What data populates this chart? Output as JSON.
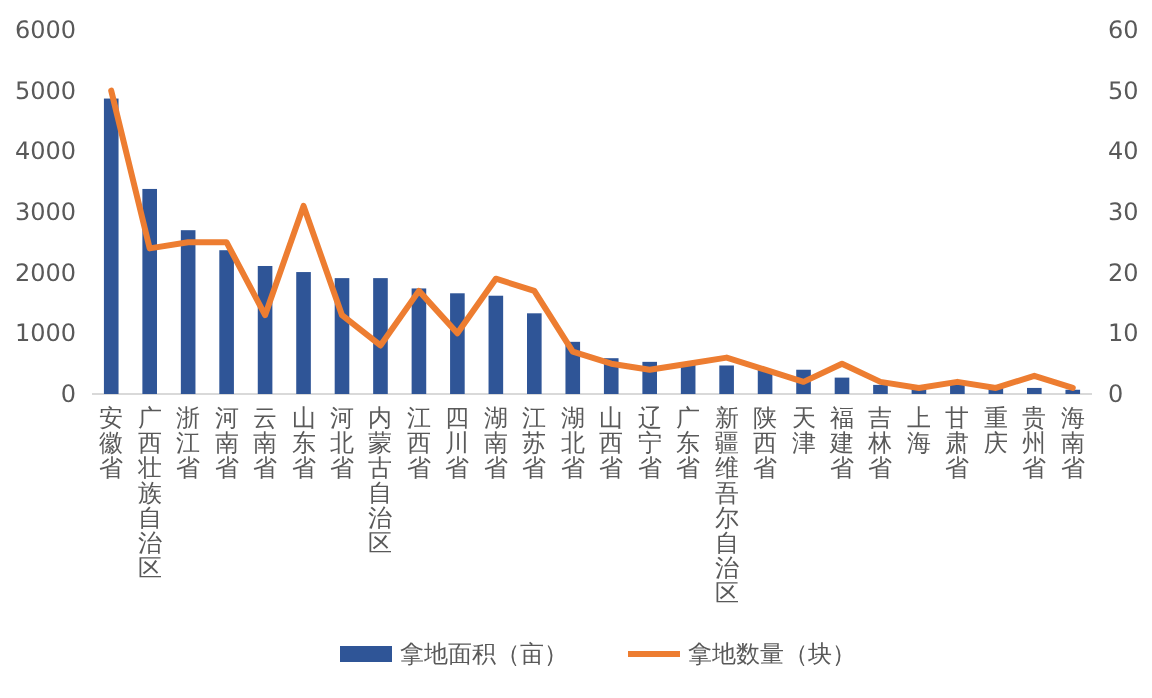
{
  "chart_data": {
    "type": "bar",
    "categories": [
      "安徽省",
      "广西壮族自治区",
      "浙江省",
      "河南省",
      "云南省",
      "山东省",
      "河北省",
      "内蒙古自治区",
      "江西省",
      "四川省",
      "湖南省",
      "江苏省",
      "湖北省",
      "山西省",
      "辽宁省",
      "广东省",
      "新疆维吾尔自治区",
      "陕西省",
      "天津",
      "福建省",
      "吉林省",
      "上海",
      "甘肃省",
      "重庆",
      "贵州省",
      "海南省"
    ],
    "series": [
      {
        "name": "拿地面积（亩）",
        "color": "#2f5597",
        "values": [
          4870,
          3380,
          2700,
          2370,
          2110,
          2010,
          1910,
          1910,
          1740,
          1660,
          1620,
          1330,
          860,
          590,
          530,
          520,
          470,
          400,
          400,
          270,
          150,
          100,
          170,
          100,
          100,
          70
        ]
      },
      {
        "name": "拿地数量（块）",
        "type": "line",
        "axis": "y2",
        "color": "#ed7d31",
        "values": [
          50,
          24,
          25,
          25,
          13,
          31,
          13,
          8,
          17,
          10,
          19,
          17,
          7,
          5,
          4,
          5,
          6,
          4,
          2,
          5,
          2,
          1,
          2,
          1,
          3,
          1
        ]
      }
    ],
    "ylim": [
      0,
      6000
    ],
    "yticks": [
      0,
      1000,
      2000,
      3000,
      4000,
      5000,
      6000
    ],
    "y2lim": [
      0,
      60
    ],
    "y2ticks": [
      0,
      10,
      20,
      30,
      40,
      50,
      60
    ],
    "legend": "bottom"
  }
}
